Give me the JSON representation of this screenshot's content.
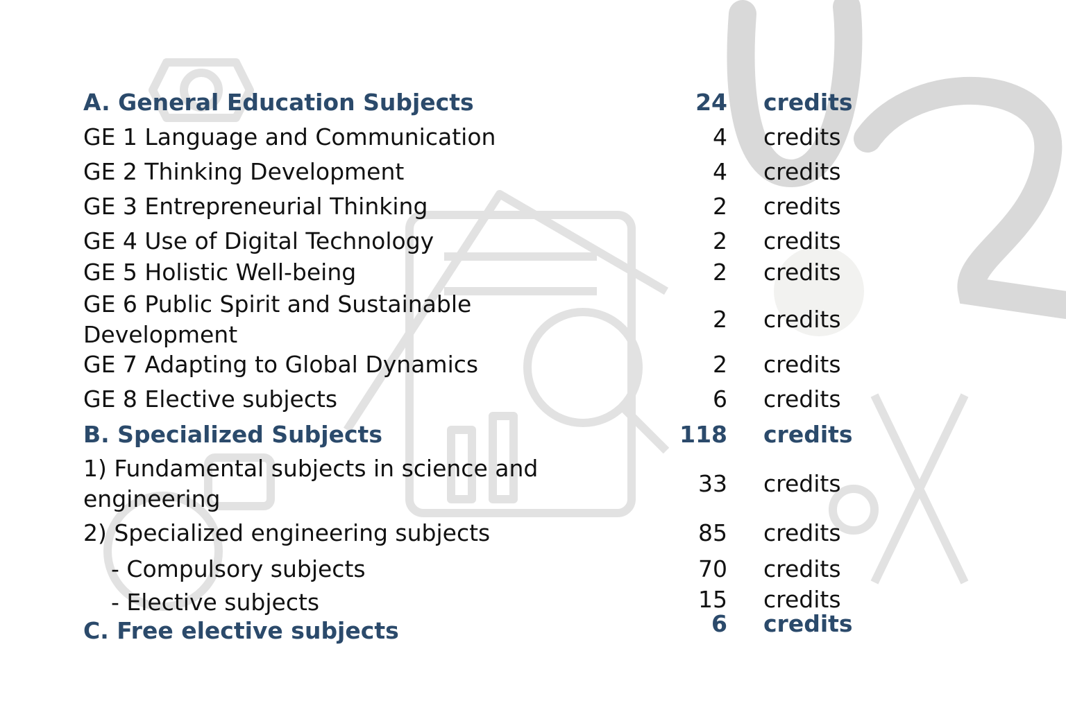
{
  "sections": [
    {
      "title": "A. General Education Subjects",
      "credits": 24,
      "unit": "credits",
      "items": [
        {
          "label": "GE 1 Language and Communication",
          "credits": 4,
          "unit": "credits"
        },
        {
          "label": "GE 2 Thinking Development",
          "credits": 4,
          "unit": "credits"
        },
        {
          "label": "GE 3 Entrepreneurial Thinking",
          "credits": 2,
          "unit": "credits"
        },
        {
          "label": "GE 4 Use of Digital Technology",
          "credits": 2,
          "unit": "credits"
        },
        {
          "label": "GE 5 Holistic Well-being",
          "credits": 2,
          "unit": "credits"
        },
        {
          "label": "GE 6 Public Spirit and Sustainable Development",
          "credits": 2,
          "unit": "credits"
        },
        {
          "label": "GE 7 Adapting to Global Dynamics",
          "credits": 2,
          "unit": "credits"
        },
        {
          "label": "GE 8 Elective subjects",
          "credits": 6,
          "unit": "credits"
        }
      ]
    },
    {
      "title": "B. Specialized Subjects",
      "credits": 118,
      "unit": "credits",
      "items": [
        {
          "label": "1) Fundamental subjects in science and engineering",
          "credits": 33,
          "unit": "credits"
        },
        {
          "label": "2) Specialized engineering subjects",
          "credits": 85,
          "unit": "credits",
          "subitems": [
            {
              "label": "- Compulsory subjects",
              "credits": 70,
              "unit": "credits"
            },
            {
              "label": "- Elective subjects",
              "credits": 15,
              "unit": "credits"
            }
          ]
        }
      ]
    },
    {
      "title": "C. Free elective subjects",
      "credits": 6,
      "unit": "credits"
    }
  ]
}
